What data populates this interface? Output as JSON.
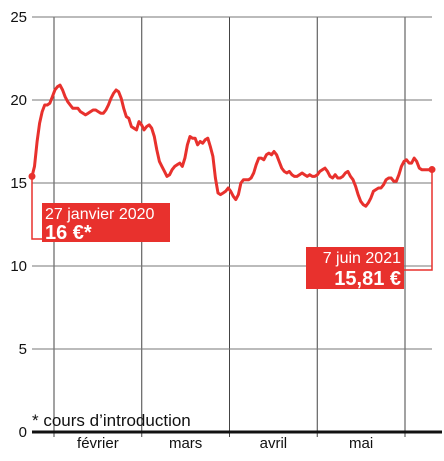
{
  "chart_data": {
    "type": "line",
    "ylim": [
      0,
      25
    ],
    "y_ticks": [
      0,
      5,
      10,
      15,
      20,
      25
    ],
    "x_range": [
      "2020-01-27",
      "2021-06-07"
    ],
    "month_labels": [
      {
        "label": "février",
        "pos": 0.125
      },
      {
        "label": "mars",
        "pos": 0.375
      },
      {
        "label": "avril",
        "pos": 0.625
      },
      {
        "label": "mai",
        "pos": 0.875
      }
    ],
    "month_gridlines": [
      0.0,
      0.25,
      0.5,
      0.75,
      1.0
    ],
    "series": [
      {
        "color": "#e8312d",
        "values": [
          15.4,
          16.0,
          17.5,
          18.6,
          19.3,
          19.7,
          19.7,
          19.8,
          20.2,
          20.6,
          20.8,
          20.9,
          20.6,
          20.2,
          19.9,
          19.7,
          19.5,
          19.5,
          19.5,
          19.3,
          19.2,
          19.1,
          19.2,
          19.3,
          19.4,
          19.4,
          19.3,
          19.2,
          19.2,
          19.4,
          19.7,
          20.1,
          20.4,
          20.6,
          20.5,
          20.1,
          19.5,
          19.0,
          18.9,
          18.4,
          18.3,
          18.2,
          18.7,
          18.5,
          18.2,
          18.4,
          18.5,
          18.3,
          17.8,
          17.0,
          16.3,
          16.0,
          15.7,
          15.4,
          15.5,
          15.8,
          16.0,
          16.1,
          16.2,
          16.0,
          16.5,
          17.3,
          17.8,
          17.7,
          17.7,
          17.3,
          17.5,
          17.4,
          17.6,
          17.7,
          17.2,
          16.6,
          15.3,
          14.4,
          14.3,
          14.4,
          14.5,
          14.7,
          14.5,
          14.2,
          14.0,
          14.3,
          15.0,
          15.2,
          15.2,
          15.2,
          15.3,
          15.6,
          16.1,
          16.5,
          16.5,
          16.4,
          16.7,
          16.8,
          16.7,
          16.9,
          16.7,
          16.3,
          15.9,
          15.7,
          15.6,
          15.7,
          15.5,
          15.4,
          15.4,
          15.5,
          15.6,
          15.5,
          15.4,
          15.5,
          15.4,
          15.4,
          15.5,
          15.7,
          15.8,
          15.9,
          15.7,
          15.4,
          15.3,
          15.5,
          15.3,
          15.3,
          15.4,
          15.6,
          15.7,
          15.4,
          15.2,
          14.8,
          14.3,
          13.9,
          13.7,
          13.6,
          13.8,
          14.1,
          14.5,
          14.6,
          14.7,
          14.7,
          14.9,
          15.2,
          15.3,
          15.3,
          15.1,
          15.1,
          15.5,
          16.0,
          16.3,
          16.4,
          16.2,
          16.2,
          16.5,
          16.3,
          15.9,
          15.8,
          15.8,
          15.8,
          15.8,
          15.81
        ]
      }
    ],
    "annotations": {
      "start": {
        "date": "27 janvier 2020",
        "price": "16 €*"
      },
      "end": {
        "date": "7 juin 2021",
        "price": "15,81 €"
      }
    },
    "footnote": "* cours d’introduction"
  }
}
